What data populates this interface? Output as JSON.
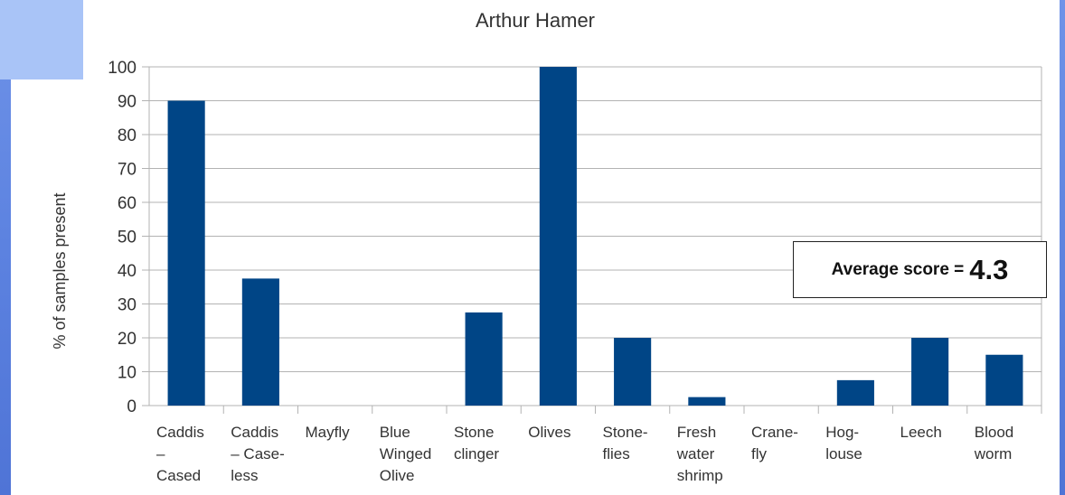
{
  "chart_data": {
    "type": "bar",
    "title": "Arthur Hamer",
    "xlabel": "",
    "ylabel": "% of samples present",
    "ylim": [
      0,
      100
    ],
    "yticks": [
      0,
      10,
      20,
      30,
      40,
      50,
      60,
      70,
      80,
      90,
      100
    ],
    "grid": true,
    "categories": [
      [
        "Caddis",
        "–",
        "Cased"
      ],
      [
        "Caddis",
        "– Case-",
        "less"
      ],
      [
        "Mayfly"
      ],
      [
        "Blue",
        "Winged",
        "Olive"
      ],
      [
        "Stone",
        "clinger"
      ],
      [
        "Olives"
      ],
      [
        "Stone-",
        "flies"
      ],
      [
        "Fresh",
        "water",
        "shrimp"
      ],
      [
        "Crane-",
        "fly"
      ],
      [
        "Hog-",
        "louse"
      ],
      [
        "Leech"
      ],
      [
        "Blood",
        "worm"
      ]
    ],
    "values": [
      90,
      37.5,
      0,
      0,
      27.5,
      100,
      20,
      2.5,
      0,
      7.5,
      20,
      15
    ],
    "bar_color": "#004586"
  },
  "annotation": {
    "label": "Average score =",
    "value": "4.3"
  }
}
